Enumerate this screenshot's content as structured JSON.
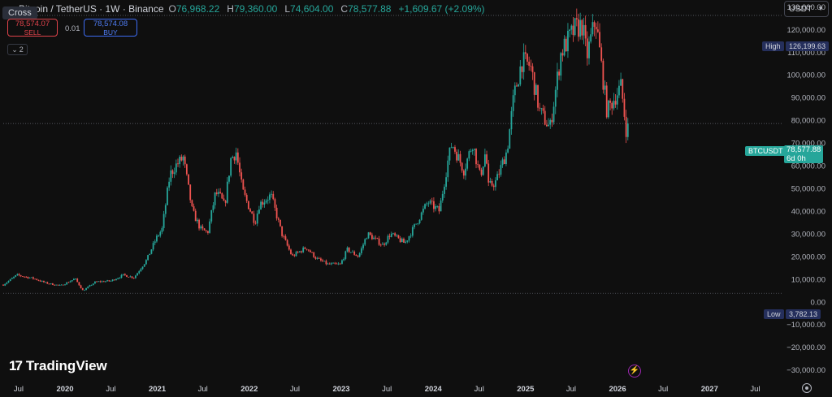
{
  "header": {
    "symbol_title": "Bitcoin / TetherUS · 1W · Binance",
    "open_label": "O",
    "open": "76,968.22",
    "high_label": "H",
    "high": "79,360.00",
    "low_label": "L",
    "low": "74,604.00",
    "close_label": "C",
    "close": "78,577.88",
    "change": "+1,609.67 (+2.09%)"
  },
  "tooltip": {
    "cross": "Cross"
  },
  "trade": {
    "sell_price": "78,574.07",
    "sell_label": "SELL",
    "buy_price": "78,574.08",
    "buy_label": "BUY",
    "spread": "0.01"
  },
  "indicators_toggle": {
    "count": "2"
  },
  "currency": {
    "selected": "USDT"
  },
  "branding": {
    "logo_text": "TradingView",
    "logo_glyph": "17"
  },
  "price_tags": {
    "high_label": "High",
    "high_value": "126,199.63",
    "low_label": "Low",
    "low_value": "3,782.13",
    "symbol": "BTCUSDT",
    "last_price": "78,577.88",
    "countdown": "6d 0h"
  },
  "colors": {
    "up": "#26a69a",
    "down": "#ef5350",
    "background": "#0f0f0f",
    "accent": "#2962ff"
  },
  "icons": [
    "chevron-down-icon",
    "settings-icon",
    "flash-icon",
    "green-status-dot"
  ],
  "chart_data": {
    "type": "candlestick",
    "interval": "1W",
    "yaxis_ticks": [
      "130,000.00",
      "120,000.00",
      "110,000.00",
      "100,000.00",
      "90,000.00",
      "80,000.00",
      "70,000.00",
      "60,000.00",
      "50,000.00",
      "40,000.00",
      "30,000.00",
      "20,000.00",
      "10,000.00",
      "0.00",
      "−10,000.00",
      "−20,000.00",
      "−30,000.00"
    ],
    "yaxis_values": [
      130000,
      120000,
      110000,
      100000,
      90000,
      80000,
      70000,
      60000,
      50000,
      40000,
      30000,
      20000,
      10000,
      0,
      -10000,
      -20000,
      -30000
    ],
    "ylim": [
      -33000,
      133000
    ],
    "xaxis_ticks": [
      {
        "label": "Jul",
        "date": "2019-07-01",
        "bold": false
      },
      {
        "label": "2020",
        "date": "2020-01-01",
        "bold": true
      },
      {
        "label": "Jul",
        "date": "2020-07-01",
        "bold": false
      },
      {
        "label": "2021",
        "date": "2021-01-01",
        "bold": true
      },
      {
        "label": "Jul",
        "date": "2021-07-01",
        "bold": false
      },
      {
        "label": "2022",
        "date": "2022-01-01",
        "bold": true
      },
      {
        "label": "Jul",
        "date": "2022-07-01",
        "bold": false
      },
      {
        "label": "2023",
        "date": "2023-01-01",
        "bold": true
      },
      {
        "label": "Jul",
        "date": "2023-07-01",
        "bold": false
      },
      {
        "label": "2024",
        "date": "2024-01-01",
        "bold": true
      },
      {
        "label": "Jul",
        "date": "2024-07-01",
        "bold": false
      },
      {
        "label": "2025",
        "date": "2025-01-01",
        "bold": true
      },
      {
        "label": "Jul",
        "date": "2025-07-01",
        "bold": false
      },
      {
        "label": "2026",
        "date": "2026-01-01",
        "bold": true
      },
      {
        "label": "Jul",
        "date": "2026-07-01",
        "bold": false
      },
      {
        "label": "2027",
        "date": "2027-01-01",
        "bold": true
      },
      {
        "label": "Jul",
        "date": "2027-07-01",
        "bold": false
      }
    ],
    "xlim": [
      "2019-05-01",
      "2027-10-01"
    ],
    "reference_lines": {
      "high": 126199.63,
      "low": 3782.13,
      "last": 78577.88
    },
    "anchors": [
      [
        "2019-05-01",
        7500
      ],
      [
        "2019-06-24",
        11800
      ],
      [
        "2019-09-01",
        10200
      ],
      [
        "2019-10-20",
        8200
      ],
      [
        "2019-12-15",
        7100
      ],
      [
        "2020-02-10",
        10200
      ],
      [
        "2020-03-12",
        4900
      ],
      [
        "2020-05-01",
        8800
      ],
      [
        "2020-07-01",
        9200
      ],
      [
        "2020-08-20",
        11800
      ],
      [
        "2020-10-01",
        10700
      ],
      [
        "2020-11-20",
        18500
      ],
      [
        "2020-12-28",
        28000
      ],
      [
        "2021-01-20",
        32000
      ],
      [
        "2021-02-20",
        56000
      ],
      [
        "2021-03-15",
        60000
      ],
      [
        "2021-04-14",
        63500
      ],
      [
        "2021-05-20",
        40000
      ],
      [
        "2021-06-22",
        32000
      ],
      [
        "2021-07-20",
        30500
      ],
      [
        "2021-08-20",
        48000
      ],
      [
        "2021-09-10",
        46000
      ],
      [
        "2021-09-25",
        42000
      ],
      [
        "2021-10-20",
        63000
      ],
      [
        "2021-11-10",
        66000
      ],
      [
        "2021-12-05",
        49000
      ],
      [
        "2022-01-24",
        35000
      ],
      [
        "2022-02-10",
        43000
      ],
      [
        "2022-03-28",
        47000
      ],
      [
        "2022-05-10",
        30000
      ],
      [
        "2022-06-20",
        20000
      ],
      [
        "2022-08-15",
        24000
      ],
      [
        "2022-09-25",
        19000
      ],
      [
        "2022-11-09",
        16500
      ],
      [
        "2022-12-28",
        16500
      ],
      [
        "2023-01-25",
        23000
      ],
      [
        "2023-03-10",
        20000
      ],
      [
        "2023-04-15",
        30000
      ],
      [
        "2023-06-15",
        25000
      ],
      [
        "2023-07-15",
        30000
      ],
      [
        "2023-09-10",
        25800
      ],
      [
        "2023-10-25",
        34500
      ],
      [
        "2023-12-10",
        44000
      ],
      [
        "2024-01-25",
        40000
      ],
      [
        "2024-02-28",
        62000
      ],
      [
        "2024-03-15",
        70000
      ],
      [
        "2024-05-01",
        58000
      ],
      [
        "2024-06-05",
        70000
      ],
      [
        "2024-07-05",
        55000
      ],
      [
        "2024-07-28",
        67000
      ],
      [
        "2024-08-05",
        50500
      ],
      [
        "2024-09-06",
        53000
      ],
      [
        "2024-10-20",
        67000
      ],
      [
        "2024-11-15",
        90000
      ],
      [
        "2024-12-17",
        106000
      ],
      [
        "2025-01-20",
        104000
      ],
      [
        "2025-02-26",
        84000
      ],
      [
        "2025-04-08",
        76500
      ],
      [
        "2025-05-22",
        110000
      ],
      [
        "2025-07-14",
        120000
      ],
      [
        "2025-08-14",
        122000
      ],
      [
        "2025-09-01",
        108000
      ],
      [
        "2025-10-06",
        125000
      ],
      [
        "2025-11-20",
        84000
      ],
      [
        "2026-01-15",
        95000
      ],
      [
        "2026-02-05",
        75000
      ],
      [
        "2026-02-12",
        78577.88
      ]
    ]
  }
}
